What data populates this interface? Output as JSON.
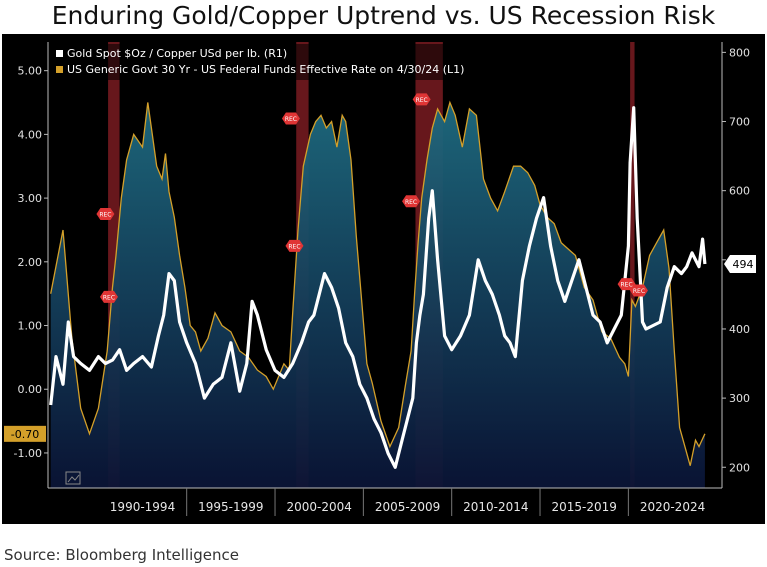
{
  "title": "Enduring Gold/Copper Uptrend vs. US Recession Risk",
  "source": "Source: Bloomberg Intelligence",
  "colors": {
    "gold_copper": "#ffffff",
    "spread": "#d4a02a",
    "area_top": "#1e6b80",
    "area_bottom": "#0a1436",
    "recession": "#8a1f26",
    "rec_marker": "#e03535"
  },
  "chart_data": {
    "type": "line",
    "title": "Enduring Gold/Copper Uptrend vs. US Recession Risk",
    "x_ticks": [
      "1990-1994",
      "1995-1999",
      "2000-2004",
      "2005-2009",
      "2010-2014",
      "2015-2019",
      "2020-2024"
    ],
    "left_axis": {
      "ticks": [
        "5.00",
        "4.00",
        "3.00",
        "2.00",
        "1.00",
        "0.00",
        "-1.00"
      ],
      "ylim": [
        -1.55,
        5.45
      ]
    },
    "right_axis": {
      "ticks": [
        "800",
        "700",
        "600",
        "500",
        "400",
        "300",
        "200"
      ],
      "ylim": [
        170,
        815
      ]
    },
    "last_values": {
      "spread": "-0.70",
      "gold_copper": "494"
    },
    "recession_marker_label": "REC",
    "recessions": [
      {
        "start": 1990.55,
        "end": 1991.2
      },
      {
        "start": 2001.2,
        "end": 2001.9
      },
      {
        "start": 2007.95,
        "end": 2009.5
      },
      {
        "start": 2020.1,
        "end": 2020.35
      }
    ],
    "rec_markers": [
      {
        "x": 1990.4,
        "y": 2.75
      },
      {
        "x": 1990.6,
        "y": 1.45
      },
      {
        "x": 2000.9,
        "y": 4.25
      },
      {
        "x": 2001.1,
        "y": 2.25
      },
      {
        "x": 2007.7,
        "y": 2.95
      },
      {
        "x": 2008.3,
        "y": 4.55
      },
      {
        "x": 2019.9,
        "y": 1.65
      },
      {
        "x": 2020.6,
        "y": 1.55
      }
    ],
    "series": [
      {
        "name": "US Generic Govt 30 Yr - US Federal Funds Effective Rate on 4/30/24 (L1)",
        "axis": "left",
        "x": [
          1987.3,
          1988.0,
          1988.5,
          1989.0,
          1989.5,
          1990.0,
          1990.5,
          1990.8,
          1991.0,
          1991.3,
          1991.6,
          1992.0,
          1992.5,
          1992.8,
          1993.0,
          1993.3,
          1993.6,
          1993.8,
          1994.0,
          1994.3,
          1994.6,
          1994.9,
          1995.2,
          1995.5,
          1995.8,
          1996.2,
          1996.6,
          1997.0,
          1997.5,
          1998.0,
          1998.5,
          1999.0,
          1999.5,
          1999.9,
          2000.2,
          2000.5,
          2000.8,
          2001.0,
          2001.3,
          2001.6,
          2002.0,
          2002.3,
          2002.6,
          2002.9,
          2003.2,
          2003.5,
          2003.8,
          2004.0,
          2004.3,
          2004.6,
          2004.9,
          2005.2,
          2005.5,
          2006.0,
          2006.5,
          2007.0,
          2007.4,
          2007.7,
          2007.9,
          2008.1,
          2008.3,
          2008.6,
          2008.9,
          2009.2,
          2009.6,
          2009.9,
          2010.2,
          2010.6,
          2011.0,
          2011.4,
          2011.8,
          2012.2,
          2012.6,
          2013.0,
          2013.5,
          2013.9,
          2014.3,
          2014.7,
          2015.0,
          2015.4,
          2015.8,
          2016.2,
          2016.6,
          2017.0,
          2017.5,
          2018.0,
          2018.5,
          2019.0,
          2019.5,
          2019.8,
          2020.0,
          2020.2,
          2020.4,
          2020.8,
          2021.2,
          2021.6,
          2022.0,
          2022.3,
          2022.6,
          2022.9,
          2023.2,
          2023.5,
          2023.8,
          2024.0,
          2024.33
        ],
        "y": [
          1.5,
          2.5,
          0.8,
          -0.3,
          -0.7,
          -0.3,
          0.6,
          1.6,
          2.1,
          3.0,
          3.6,
          4.0,
          3.8,
          4.5,
          4.1,
          3.5,
          3.3,
          3.7,
          3.1,
          2.7,
          2.1,
          1.6,
          1.0,
          0.9,
          0.6,
          0.8,
          1.2,
          1.0,
          0.9,
          0.6,
          0.5,
          0.3,
          0.2,
          0.0,
          0.2,
          0.4,
          0.3,
          1.2,
          2.5,
          3.5,
          4.0,
          4.2,
          4.3,
          4.1,
          4.2,
          3.8,
          4.3,
          4.2,
          3.6,
          2.4,
          1.4,
          0.4,
          0.1,
          -0.5,
          -0.9,
          -0.6,
          0.1,
          0.6,
          1.5,
          2.3,
          3.0,
          3.6,
          4.1,
          4.4,
          4.2,
          4.5,
          4.3,
          3.8,
          4.4,
          4.3,
          3.3,
          3.0,
          2.8,
          3.1,
          3.5,
          3.5,
          3.4,
          3.2,
          2.9,
          2.7,
          2.6,
          2.3,
          2.2,
          2.1,
          1.6,
          1.4,
          0.9,
          0.8,
          0.5,
          0.4,
          0.2,
          1.4,
          1.3,
          1.6,
          2.1,
          2.3,
          2.5,
          1.9,
          0.6,
          -0.6,
          -0.9,
          -1.2,
          -0.8,
          -0.9,
          -0.7
        ]
      },
      {
        "name": "Gold Spot $Oz / Copper USd per lb. (R1)",
        "axis": "right",
        "x": [
          1987.3,
          1987.6,
          1988.0,
          1988.3,
          1988.6,
          1989.0,
          1989.5,
          1990.0,
          1990.4,
          1990.8,
          1991.2,
          1991.6,
          1992.0,
          1992.5,
          1993.0,
          1993.4,
          1993.7,
          1994.0,
          1994.3,
          1994.6,
          1995.0,
          1995.5,
          1996.0,
          1996.5,
          1997.0,
          1997.5,
          1998.0,
          1998.4,
          1998.7,
          1999.0,
          1999.5,
          2000.0,
          2000.5,
          2001.0,
          2001.5,
          2001.9,
          2002.2,
          2002.5,
          2002.8,
          2003.2,
          2003.6,
          2004.0,
          2004.4,
          2004.8,
          2005.2,
          2005.6,
          2006.0,
          2006.4,
          2006.8,
          2007.2,
          2007.5,
          2007.8,
          2008.0,
          2008.2,
          2008.4,
          2008.7,
          2008.9,
          2009.2,
          2009.6,
          2010.0,
          2010.5,
          2011.0,
          2011.5,
          2011.9,
          2012.3,
          2012.7,
          2013.0,
          2013.3,
          2013.6,
          2014.0,
          2014.4,
          2014.8,
          2015.2,
          2015.6,
          2016.0,
          2016.4,
          2016.8,
          2017.2,
          2017.6,
          2018.0,
          2018.4,
          2018.8,
          2019.2,
          2019.6,
          2020.0,
          2020.1,
          2020.3,
          2020.5,
          2020.8,
          2021.0,
          2021.4,
          2021.8,
          2022.2,
          2022.6,
          2023.0,
          2023.3,
          2023.6,
          2024.0,
          2024.2,
          2024.33
        ],
        "y": [
          290,
          360,
          320,
          410,
          360,
          350,
          340,
          360,
          350,
          355,
          370,
          340,
          350,
          360,
          345,
          390,
          420,
          480,
          470,
          410,
          380,
          350,
          300,
          320,
          330,
          380,
          310,
          350,
          440,
          420,
          370,
          340,
          330,
          350,
          380,
          410,
          420,
          450,
          480,
          460,
          430,
          380,
          360,
          320,
          300,
          270,
          250,
          220,
          200,
          240,
          270,
          300,
          380,
          420,
          450,
          560,
          600,
          500,
          390,
          370,
          390,
          420,
          500,
          470,
          450,
          420,
          390,
          380,
          360,
          470,
          520,
          560,
          590,
          520,
          470,
          440,
          470,
          500,
          460,
          420,
          410,
          380,
          400,
          420,
          520,
          640,
          720,
          560,
          410,
          400,
          405,
          410,
          460,
          490,
          480,
          490,
          510,
          490,
          530,
          494
        ]
      }
    ]
  }
}
